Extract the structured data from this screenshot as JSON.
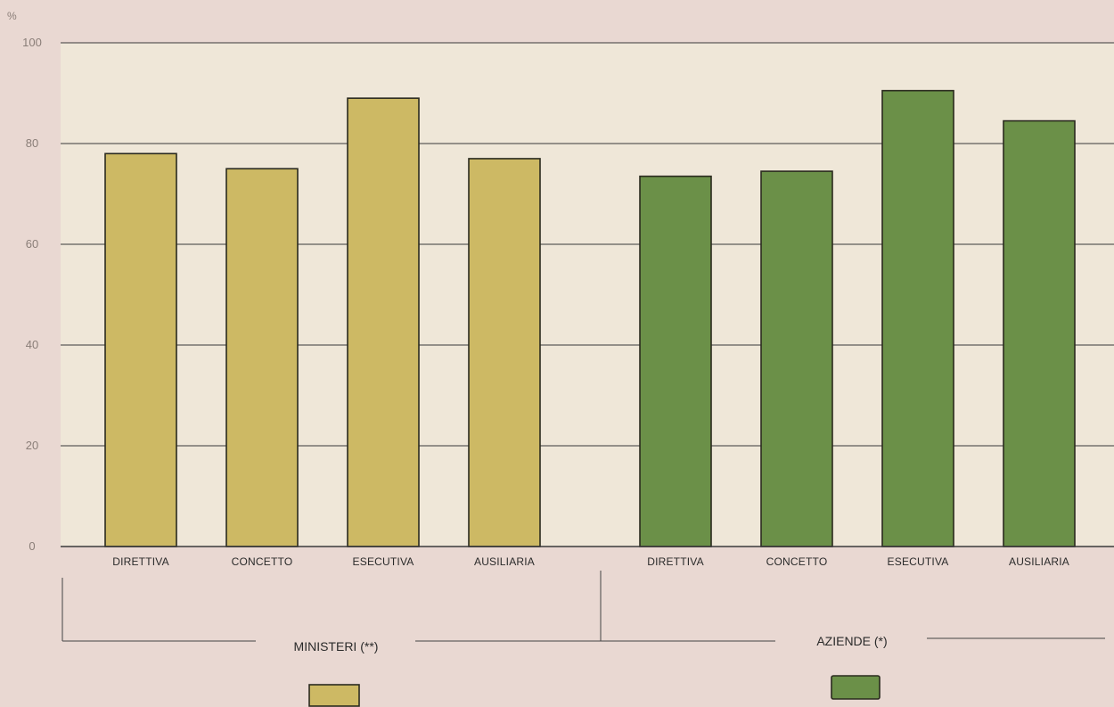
{
  "chart_data": {
    "type": "bar",
    "y_unit": "%",
    "ylim": [
      0,
      100
    ],
    "y_ticks": [
      "0",
      "20",
      "40",
      "60",
      "80",
      "100"
    ],
    "grid": true,
    "groups": [
      {
        "label": "MINISTERI (**)",
        "color": "#cdb964",
        "categories": [
          "DIRETTIVA",
          "CONCETTO",
          "ESECUTIVA",
          "AUSILIARIA"
        ],
        "values": [
          78,
          75,
          89,
          77
        ]
      },
      {
        "label": "AZIENDE (*)",
        "color": "#6b9048",
        "categories": [
          "DIRETTIVA",
          "CONCETTO",
          "ESECUTIVA",
          "AUSILIARIA"
        ],
        "values": [
          73.5,
          74.5,
          90.5,
          84.5
        ]
      }
    ]
  },
  "colors": {
    "plot_background": "#efe7d8",
    "page_background": "#e9d8d2",
    "axis": "#3a3a3a"
  }
}
